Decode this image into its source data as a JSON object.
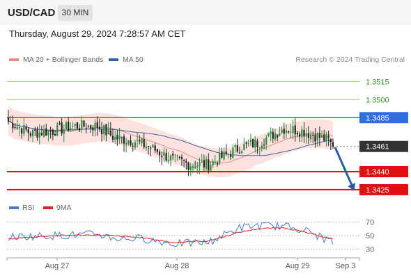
{
  "header": {
    "pair": "USD/CAD",
    "timeframe": "30 MIN"
  },
  "timestamp": "Thursday, August 29, 2024 7:28:57 AM CET",
  "legend": [
    {
      "label": "MA 20 + Bollinger Bands",
      "color": "#f08a80"
    },
    {
      "label": "MA 50",
      "color": "#2f5fa8"
    }
  ],
  "credit": "Research © 2024 Trading Central",
  "rsi_legend": [
    {
      "label": "RSI",
      "color": "#4a78d0"
    },
    {
      "label": "9MA",
      "color": "#e02020"
    }
  ],
  "colors": {
    "up": "#2e8b3d",
    "down": "#222222",
    "resistance_line": "#9acd6a",
    "pivot": "#2f6fe0",
    "support": "#e01010",
    "current": "#333333",
    "band_fill": "#fde2e0",
    "arrow": "#2c5aa0"
  },
  "chart_data": {
    "type": "candlestick",
    "title": "USD/CAD",
    "timeframe": "30 MIN",
    "x_labels": [
      "Aug 27",
      "Aug 28",
      "Aug 29",
      "Sep 3"
    ],
    "y_range": [
      1.3418,
      1.3528
    ],
    "levels": [
      {
        "value": 1.3515,
        "label": "1.3515",
        "kind": "resistance"
      },
      {
        "value": 1.35,
        "label": "1.3500",
        "kind": "resistance"
      },
      {
        "value": 1.3485,
        "label": "1.3485",
        "kind": "pivot"
      },
      {
        "value": 1.3461,
        "label": "1.3461",
        "kind": "current"
      },
      {
        "value": 1.344,
        "label": "1.3440",
        "kind": "support"
      },
      {
        "value": 1.3425,
        "label": "1.3425",
        "kind": "support"
      }
    ],
    "close_anchors": [
      [
        0,
        1.3482
      ],
      [
        10,
        1.3472
      ],
      [
        20,
        1.3474
      ],
      [
        30,
        1.3478
      ],
      [
        40,
        1.3478
      ],
      [
        48,
        1.3468
      ],
      [
        56,
        1.3466
      ],
      [
        64,
        1.346
      ],
      [
        74,
        1.345
      ],
      [
        82,
        1.3446
      ],
      [
        90,
        1.3446
      ],
      [
        96,
        1.3452
      ],
      [
        104,
        1.346
      ],
      [
        112,
        1.3464
      ],
      [
        118,
        1.347
      ],
      [
        124,
        1.3476
      ],
      [
        132,
        1.3474
      ],
      [
        138,
        1.347
      ],
      [
        144,
        1.3466
      ],
      [
        146,
        1.3461
      ]
    ],
    "candle_count": 147,
    "projection": {
      "from": 1.3461,
      "to": 1.3425
    },
    "rsi": {
      "levels": [
        70,
        50,
        30
      ],
      "range": [
        20,
        80
      ],
      "rsi_anchors": [
        [
          0,
          48
        ],
        [
          20,
          50
        ],
        [
          40,
          52
        ],
        [
          50,
          45
        ],
        [
          60,
          46
        ],
        [
          74,
          38
        ],
        [
          90,
          40
        ],
        [
          104,
          62
        ],
        [
          112,
          65
        ],
        [
          124,
          64
        ],
        [
          132,
          60
        ],
        [
          146,
          40
        ]
      ],
      "ma_anchors": [
        [
          0,
          45
        ],
        [
          20,
          50
        ],
        [
          40,
          51
        ],
        [
          60,
          47
        ],
        [
          74,
          40
        ],
        [
          90,
          42
        ],
        [
          104,
          55
        ],
        [
          112,
          60
        ],
        [
          124,
          62
        ],
        [
          132,
          56
        ],
        [
          146,
          45
        ]
      ]
    }
  }
}
